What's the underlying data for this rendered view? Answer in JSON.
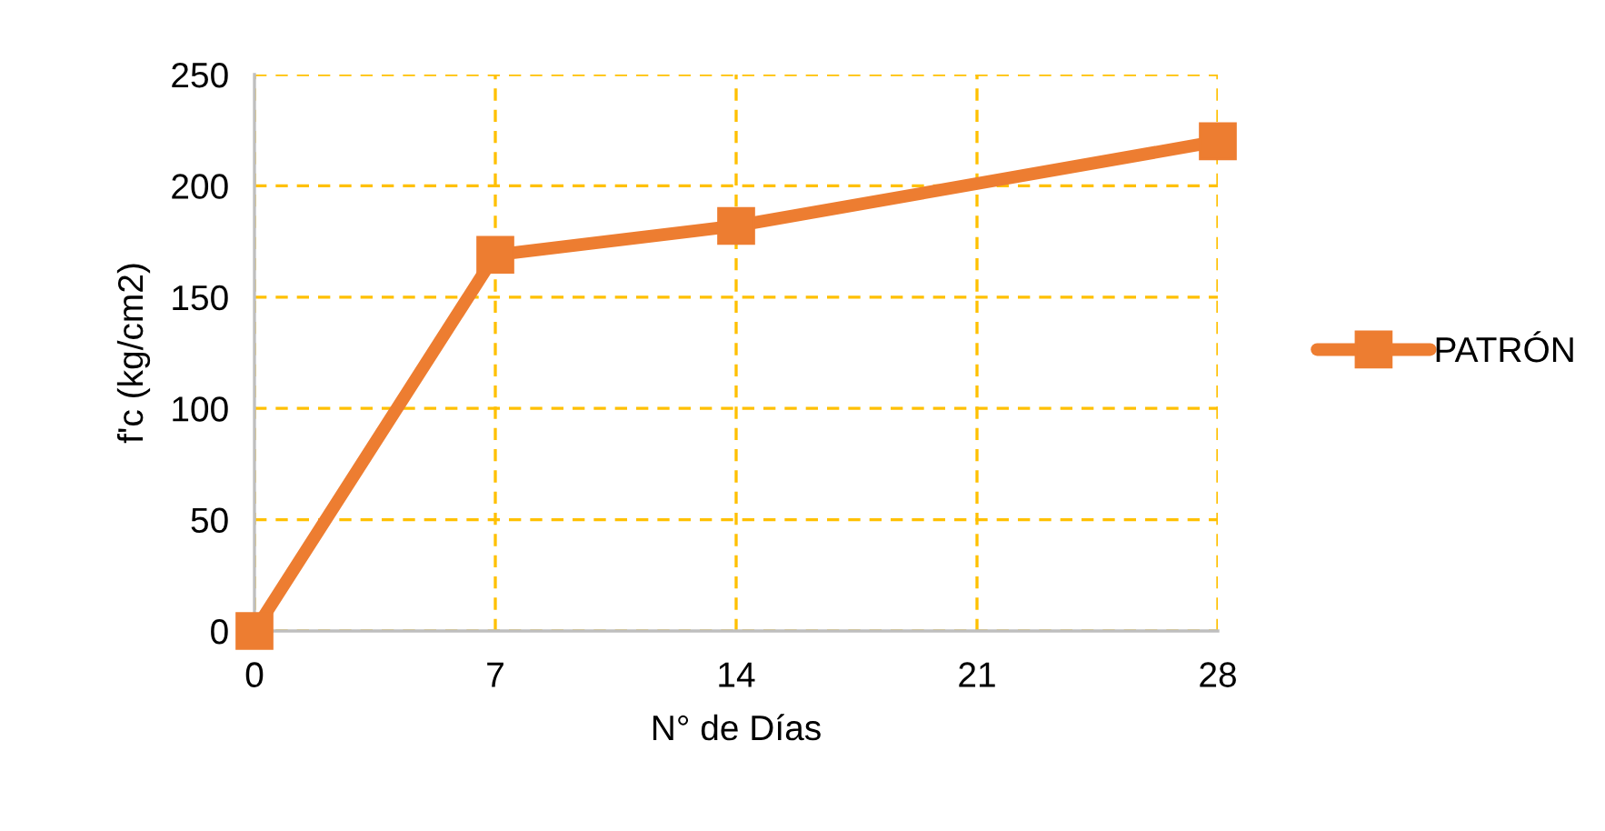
{
  "chart_data": {
    "type": "line",
    "xlabel": "N° de Días",
    "ylabel": "f'c (kg/cm2)",
    "series": [
      {
        "name": "PATRÓN",
        "color": "#ed7d31",
        "x": [
          0,
          7,
          14,
          28
        ],
        "values": [
          0,
          169,
          182,
          220
        ]
      }
    ],
    "xlim": [
      0,
      28
    ],
    "xticks": [
      0,
      7,
      14,
      21,
      28
    ],
    "ylim": [
      0,
      250
    ],
    "yticks": [
      0,
      50,
      100,
      150,
      200,
      250
    ],
    "grid": true,
    "legend": "right",
    "marker": "square",
    "line_style": "solid"
  }
}
